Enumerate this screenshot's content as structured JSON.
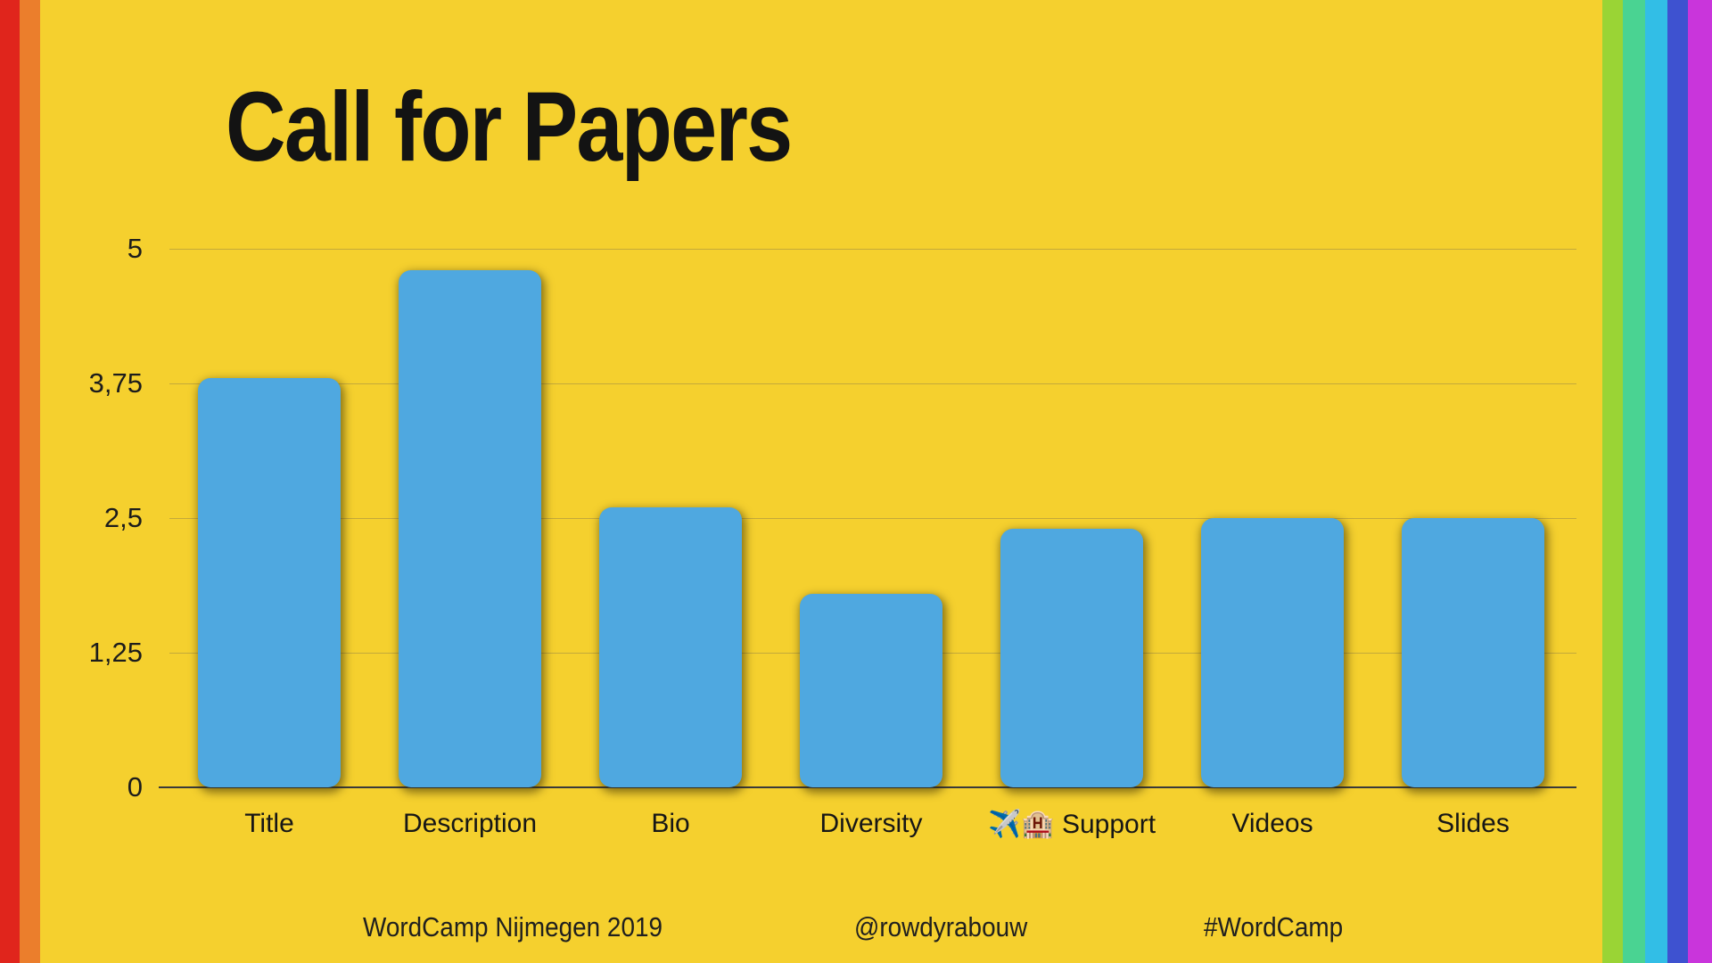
{
  "slide": {
    "title": "Call for Papers",
    "footer": {
      "event": "WordCamp Nijmegen 2019",
      "handle": "@rowdyrabouw",
      "hashtag": "#WordCamp"
    }
  },
  "colors": {
    "background": "#F5D02E",
    "bar": "#4FA8E0",
    "title_text": "#131313",
    "gridline": "rgba(115,104,78,0.38)",
    "axis_line": "#3a3a3a",
    "left_stripes": [
      "#E0251C",
      "#EB7E2C"
    ],
    "right_stripes": [
      "#9AD435",
      "#4AD392",
      "#32BEE6",
      "#3E52D0",
      "#C935DB"
    ]
  },
  "chart_data": {
    "type": "bar",
    "title": "Call for Papers",
    "xlabel": "",
    "ylabel": "",
    "categories": [
      "Title",
      "Description",
      "Bio",
      "Diversity",
      "✈️🏨 Support",
      "Videos",
      "Slides"
    ],
    "values": [
      3.8,
      4.8,
      2.6,
      1.8,
      2.4,
      2.5,
      2.5
    ],
    "ylim": [
      0,
      5
    ],
    "yticks": [
      {
        "value": 5,
        "label": "5"
      },
      {
        "value": 3.75,
        "label": "3,75"
      },
      {
        "value": 2.5,
        "label": "2,5"
      },
      {
        "value": 1.25,
        "label": "1,25"
      },
      {
        "value": 0,
        "label": "0"
      }
    ],
    "grid": true,
    "legend": false,
    "bar_color": "#4FA8E0"
  }
}
